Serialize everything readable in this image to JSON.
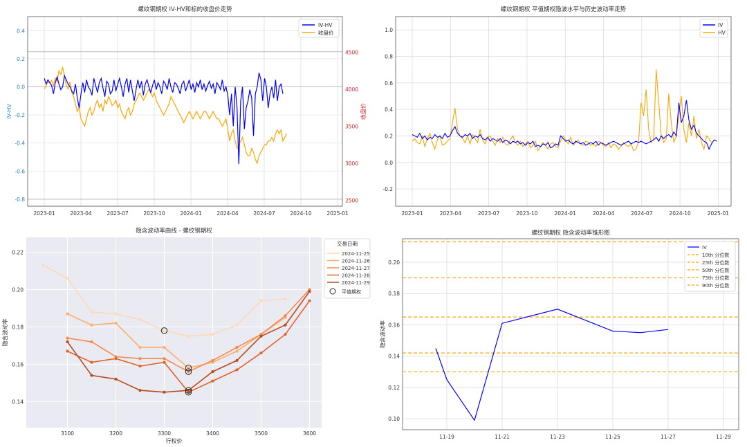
{
  "chart_data": [
    {
      "type": "line",
      "title": "螺纹钢期权 IV-HV和标的收盘价走势",
      "ylabel": "IV-HV",
      "y2label": "收盘价",
      "ylim": [
        -0.85,
        0.5
      ],
      "y2lim": [
        2420,
        4980
      ],
      "yticks": [
        -0.8,
        -0.6,
        -0.4,
        -0.2,
        0.0,
        0.2,
        0.4
      ],
      "y2ticks": [
        2500,
        3000,
        3500,
        4000,
        4500
      ],
      "xticks": [
        "2023-01",
        "2023-04",
        "2023-07",
        "2023-10",
        "2024-01",
        "2024-04",
        "2024-07",
        "2024-10",
        "2025-01"
      ],
      "hlines": [
        -0.8,
        0.0,
        0.25,
        -0.85
      ],
      "legend": "top-right",
      "colors": {
        "left_axis": "#2d7fb8",
        "right_axis": "#d62728"
      },
      "series": [
        {
          "name": "IV-HV",
          "color": "#0000ff",
          "axis": "left",
          "values": [
            0.06,
            0.02,
            0.05,
            0.03,
            0.01,
            -0.05,
            0.03,
            0.07,
            0.02,
            -0.02,
            0.0,
            0.08,
            0.05,
            0.02,
            0.0,
            -0.03,
            -0.05,
            0.02,
            -0.08,
            -0.15,
            -0.05,
            0.03,
            -0.04,
            0.05,
            0.0,
            -0.02,
            -0.06,
            0.06,
            0.01,
            -0.04,
            0.03,
            0.06,
            -0.01,
            -0.07,
            0.04,
            0.02,
            -0.05,
            -0.03,
            0.05,
            -0.03,
            0.02,
            0.06,
            0.0,
            -0.07,
            0.02,
            0.06,
            -0.04,
            0.05,
            -0.03,
            -0.1,
            -0.02,
            0.05,
            -0.01,
            0.04,
            -0.06,
            0.02,
            0.05,
            0.0,
            -0.04,
            0.01,
            0.05,
            -0.02,
            0.03,
            0.0,
            -0.05,
            0.04,
            0.02,
            -0.02,
            0.06,
            0.0,
            -0.04,
            0.03,
            0.02,
            -0.01,
            -0.05,
            0.02,
            0.04,
            -0.03,
            0.01,
            0.05,
            -0.02,
            0.02,
            -0.04,
            0.03,
            0.0,
            0.05,
            -0.02,
            0.02,
            -0.03,
            0.01,
            0.04,
            -0.01,
            0.02,
            -0.05,
            0.03,
            0.01,
            -0.02,
            0.05,
            -0.03,
            0.0,
            -0.06,
            -0.2,
            -0.05,
            -0.28,
            0.0,
            -0.15,
            -0.55,
            -0.1,
            0.0,
            -0.3,
            -0.15,
            -0.1,
            -0.02,
            -0.08,
            -0.35,
            -0.05,
            0.0,
            0.1,
            0.05,
            -0.1,
            0.06,
            0.0,
            -0.15,
            -0.05,
            0.0,
            -0.08,
            0.05,
            -0.1,
            0.0,
            0.02,
            -0.05
          ]
        },
        {
          "name": "收盘价",
          "color": "#ffa500",
          "axis": "right",
          "values": [
            4000,
            4050,
            4100,
            4080,
            4120,
            4050,
            4150,
            4100,
            4250,
            4200,
            4300,
            4180,
            4050,
            4000,
            4100,
            3950,
            3900,
            3800,
            3700,
            3750,
            3600,
            3550,
            3500,
            3600,
            3700,
            3750,
            3650,
            3700,
            3800,
            3850,
            3750,
            3800,
            3700,
            3850,
            3800,
            3900,
            3850,
            3780,
            3800,
            3850,
            3750,
            3800,
            3700,
            3650,
            3600,
            3700,
            3750,
            3650,
            3700,
            3800,
            3850,
            3900,
            3950,
            3900,
            3850,
            3900,
            3950,
            4000,
            3950,
            3900,
            3950,
            3850,
            3800,
            3750,
            3700,
            3650,
            3700,
            3750,
            3800,
            3900,
            3850,
            3800,
            3750,
            3700,
            3650,
            3600,
            3550,
            3600,
            3650,
            3700,
            3650,
            3600,
            3650,
            3700,
            3650,
            3600,
            3650,
            3700,
            3700,
            3650,
            3600,
            3650,
            3700,
            3650,
            3600,
            3600,
            3550,
            3500,
            3550,
            3600,
            3450,
            3300,
            3400,
            3450,
            3300,
            3200,
            3250,
            3300,
            3350,
            3250,
            3150,
            3100,
            3100,
            3200,
            3150,
            3050,
            3000,
            3100,
            3150,
            3200,
            3250,
            3250,
            3300,
            3300,
            3350,
            3300,
            3400,
            3450,
            3400,
            3450,
            3300,
            3350,
            3400
          ]
        }
      ]
    },
    {
      "type": "line",
      "title": "螺纹钢期权 平值期权隐波水平与历史波动率走势",
      "ylim": [
        -0.33,
        1.1
      ],
      "yticks": [
        -0.2,
        0.0,
        0.2,
        0.4,
        0.6,
        0.8,
        1.0
      ],
      "xticks": [
        "2023-01",
        "2023-04",
        "2023-07",
        "2023-10",
        "2024-01",
        "2024-04",
        "2024-07",
        "2024-10",
        "2025-01"
      ],
      "legend": "top-right",
      "series": [
        {
          "name": "IV",
          "color": "#0000ff",
          "values": [
            0.21,
            0.2,
            0.19,
            0.22,
            0.18,
            0.2,
            0.17,
            0.19,
            0.18,
            0.21,
            0.19,
            0.2,
            0.18,
            0.22,
            0.19,
            0.2,
            0.24,
            0.27,
            0.22,
            0.2,
            0.19,
            0.21,
            0.2,
            0.22,
            0.18,
            0.2,
            0.19,
            0.21,
            0.18,
            0.17,
            0.19,
            0.16,
            0.18,
            0.17,
            0.16,
            0.18,
            0.15,
            0.17,
            0.16,
            0.14,
            0.16,
            0.15,
            0.16,
            0.14,
            0.15,
            0.13,
            0.15,
            0.14,
            0.16,
            0.12,
            0.13,
            0.12,
            0.14,
            0.13,
            0.15,
            0.11,
            0.12,
            0.14,
            0.13,
            0.2,
            0.18,
            0.16,
            0.17,
            0.15,
            0.14,
            0.16,
            0.15,
            0.14,
            0.15,
            0.13,
            0.14,
            0.15,
            0.14,
            0.16,
            0.13,
            0.15,
            0.14,
            0.13,
            0.14,
            0.15,
            0.16,
            0.15,
            0.14,
            0.13,
            0.14,
            0.15,
            0.16,
            0.14,
            0.15,
            0.16,
            0.15,
            0.16,
            0.15,
            0.14,
            0.15,
            0.16,
            0.17,
            0.19,
            0.16,
            0.2,
            0.18,
            0.2,
            0.21,
            0.19,
            0.23,
            0.2,
            0.45,
            0.3,
            0.35,
            0.47,
            0.32,
            0.25,
            0.28,
            0.22,
            0.2,
            0.18,
            0.16,
            0.15,
            0.1,
            0.14,
            0.17,
            0.16
          ]
        },
        {
          "name": "HV",
          "color": "#ffa500",
          "values": [
            0.16,
            0.18,
            0.15,
            0.14,
            0.2,
            0.12,
            0.18,
            0.22,
            0.15,
            0.1,
            0.17,
            0.2,
            0.13,
            0.14,
            0.16,
            0.18,
            0.3,
            0.41,
            0.25,
            0.2,
            0.18,
            0.15,
            0.2,
            0.14,
            0.21,
            0.18,
            0.15,
            0.25,
            0.17,
            0.14,
            0.19,
            0.2,
            0.16,
            0.13,
            0.18,
            0.15,
            0.19,
            0.14,
            0.13,
            0.17,
            0.2,
            0.15,
            0.13,
            0.16,
            0.12,
            0.14,
            0.16,
            0.11,
            0.13,
            0.16,
            0.09,
            0.12,
            0.15,
            0.13,
            0.1,
            0.14,
            0.15,
            0.12,
            0.11,
            0.16,
            0.2,
            0.17,
            0.14,
            0.19,
            0.13,
            0.15,
            0.17,
            0.14,
            0.13,
            0.16,
            0.15,
            0.13,
            0.14,
            0.12,
            0.16,
            0.15,
            0.13,
            0.12,
            0.15,
            0.11,
            0.14,
            0.13,
            0.1,
            0.12,
            0.15,
            0.13,
            0.12,
            0.14,
            0.09,
            0.1,
            0.16,
            0.45,
            0.35,
            0.55,
            0.25,
            0.15,
            0.18,
            0.7,
            0.45,
            0.2,
            0.15,
            0.18,
            0.52,
            0.3,
            0.15,
            0.2,
            0.35,
            0.5,
            0.25,
            0.15,
            0.3,
            0.2,
            0.35,
            0.18,
            0.25,
            0.15,
            0.1,
            0.2,
            0.18,
            0.15
          ]
        }
      ]
    },
    {
      "type": "line",
      "title": "隐含波动率曲线 - 螺纹钢期权",
      "xlabel": "行权价",
      "ylabel": "隐含波动率",
      "xlim": [
        3015,
        3625
      ],
      "ylim": [
        0.126,
        0.228
      ],
      "xticks": [
        3100,
        3200,
        3300,
        3400,
        3500,
        3600
      ],
      "yticks": [
        0.14,
        0.16,
        0.18,
        0.2,
        0.22
      ],
      "legend": "top-right",
      "legend_title": "交易日期",
      "atm_label": "平值期权",
      "series": [
        {
          "name": "2024-11-25",
          "color": "#fdd9b5",
          "x": [
            3050,
            3100,
            3150,
            3200,
            3250,
            3300,
            3350,
            3400,
            3450,
            3500,
            3550
          ],
          "values": [
            0.213,
            0.206,
            0.188,
            0.187,
            0.184,
            0.178,
            0.175,
            0.176,
            0.181,
            0.194,
            0.195
          ],
          "atm_x": 3300,
          "atm_y": 0.178
        },
        {
          "name": "2024-11-26",
          "color": "#fdae6b",
          "x": [
            3100,
            3150,
            3200,
            3250,
            3300,
            3350,
            3400,
            3450,
            3500,
            3550
          ],
          "values": [
            0.187,
            0.181,
            0.182,
            0.169,
            0.169,
            0.158,
            0.161,
            0.167,
            0.176,
            0.185
          ],
          "atm_x": 3350,
          "atm_y": 0.158
        },
        {
          "name": "2024-11-27",
          "color": "#f4894a",
          "x": [
            3100,
            3150,
            3200,
            3250,
            3300,
            3350,
            3400,
            3450,
            3500,
            3550,
            3600
          ],
          "values": [
            0.174,
            0.172,
            0.164,
            0.163,
            0.163,
            0.156,
            0.162,
            0.169,
            0.176,
            0.186,
            0.2
          ],
          "atm_x": 3350,
          "atm_y": 0.156
        },
        {
          "name": "2024-11-28",
          "color": "#e2622a",
          "x": [
            3100,
            3150,
            3200,
            3250,
            3300,
            3350,
            3400,
            3450,
            3500,
            3550,
            3600
          ],
          "values": [
            0.167,
            0.161,
            0.163,
            0.159,
            0.161,
            0.145,
            0.151,
            0.157,
            0.166,
            0.176,
            0.194
          ],
          "atm_x": 3350,
          "atm_y": 0.145
        },
        {
          "name": "2024-11-29",
          "color": "#b94a1a",
          "x": [
            3100,
            3150,
            3200,
            3250,
            3300,
            3350,
            3400,
            3450,
            3500,
            3550,
            3600
          ],
          "values": [
            0.172,
            0.154,
            0.152,
            0.146,
            0.145,
            0.146,
            0.156,
            0.162,
            0.175,
            0.181,
            0.199
          ],
          "atm_x": 3350,
          "atm_y": 0.146
        }
      ]
    },
    {
      "type": "line",
      "title": "螺纹钢期权 隐含波动率锥形图",
      "ylabel": "隐含波动率",
      "ylim": [
        0.093,
        0.215
      ],
      "yticks": [
        0.1,
        0.12,
        0.14,
        0.16,
        0.18,
        0.2
      ],
      "xticks": [
        "11-19",
        "11-21",
        "11-23",
        "11-25",
        "11-27",
        "11-29"
      ],
      "legend": "top-right",
      "series": [
        {
          "name": "IV",
          "color": "#0000ff",
          "x": [
            -0.4,
            0.0,
            1.0,
            2.0,
            4.0,
            6.0,
            7.0,
            8.0
          ],
          "values": [
            0.145,
            0.125,
            0.099,
            0.161,
            0.17,
            0.156,
            0.155,
            0.157
          ]
        }
      ],
      "quantiles": [
        {
          "name": "10th 分位数",
          "value": 0.13,
          "color": "#ffa500"
        },
        {
          "name": "25th 分位数",
          "value": 0.142,
          "color": "#ffa500"
        },
        {
          "name": "50th 分位数",
          "value": 0.165,
          "color": "#ffa500"
        },
        {
          "name": "75th 分位数",
          "value": 0.19,
          "color": "#ffa500"
        },
        {
          "name": "90th 分位数",
          "value": 0.213,
          "color": "#ffa500"
        }
      ]
    }
  ]
}
